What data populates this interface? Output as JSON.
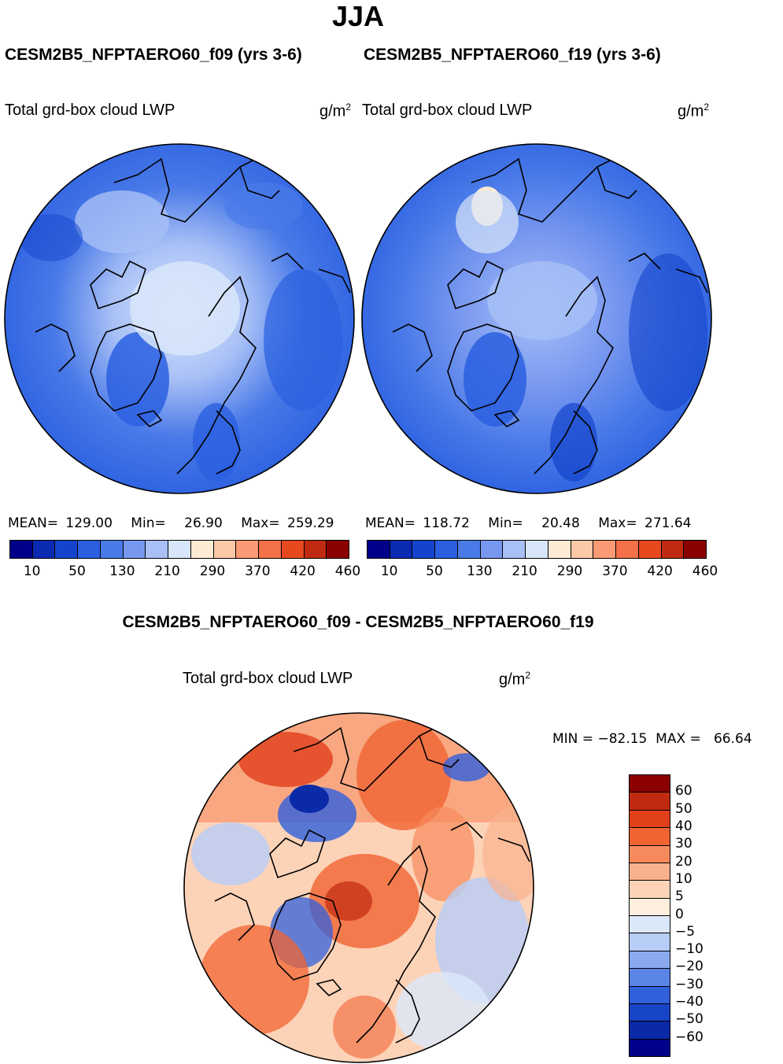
{
  "page": {
    "season": "JJA",
    "case_a": "CESM2B5_NFPTAERO60_f09 (yrs 3-6)",
    "case_b": "CESM2B5_NFPTAERO60_f19 (yrs 3-6)",
    "diff_title": "CESM2B5_NFPTAERO60_f09 - CESM2B5_NFPTAERO60_f19"
  },
  "panel_a": {
    "variable": "Total grd-box cloud LWP",
    "units": "g/m",
    "units_sup": "2",
    "mean_label": "MEAN=",
    "mean": "129.00",
    "min_label": "Min=",
    "min": "26.90",
    "max_label": "Max=",
    "max": "259.29"
  },
  "panel_b": {
    "variable": "Total grd-box cloud LWP",
    "units": "g/m",
    "units_sup": "2",
    "mean_label": "MEAN=",
    "mean": "118.72",
    "min_label": "Min=",
    "min": "20.48",
    "max_label": "Max=",
    "max": "271.64"
  },
  "panel_diff": {
    "variable": "Total grd-box cloud LWP",
    "units": "g/m",
    "units_sup": "2",
    "minmax": "MIN = −82.15  MAX =   66.64"
  },
  "colorbar_abs": {
    "colors": [
      "#00008b",
      "#0a2ab2",
      "#1444cc",
      "#2a5fe0",
      "#4a7ae8",
      "#7898f0",
      "#a8c0f6",
      "#d8e6fa",
      "#fdebd4",
      "#fbc8a8",
      "#f89b75",
      "#f37048",
      "#e8481e",
      "#c02a10",
      "#8b0000"
    ],
    "ticks": [
      "10",
      "50",
      "130",
      "210",
      "290",
      "370",
      "420",
      "460"
    ]
  },
  "colorbar_diff": {
    "colors": [
      "#8b0000",
      "#c02a10",
      "#e0401a",
      "#f06432",
      "#f68a5c",
      "#fab28e",
      "#fdd3b8",
      "#fdeedd",
      "#dbe8fa",
      "#b6cdf6",
      "#8aaaf0",
      "#5a84e6",
      "#3060dc",
      "#1844c8",
      "#0a2aa8",
      "#00008b"
    ],
    "ticks": [
      "60",
      "50",
      "40",
      "30",
      "20",
      "10",
      "5",
      "0",
      "−5",
      "−10",
      "−20",
      "−30",
      "−40",
      "−50",
      "−60"
    ]
  },
  "icons": {
    "map_a": "arctic-map-lwp-f09",
    "map_b": "arctic-map-lwp-f19",
    "map_diff": "arctic-map-lwp-difference"
  }
}
